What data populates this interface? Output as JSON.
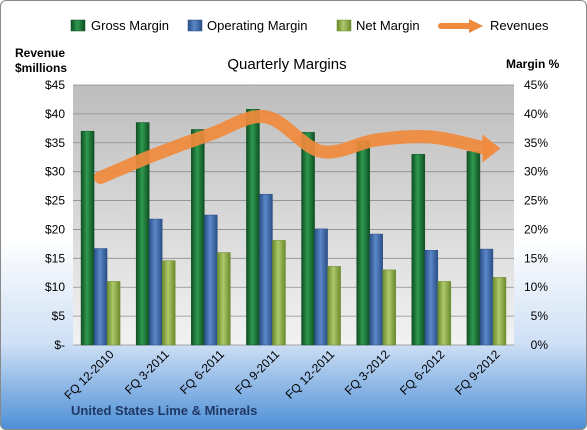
{
  "chart_data": {
    "type": "bar",
    "title": "Quarterly Margins",
    "ylabel_left_line1": "Revenue",
    "ylabel_left_line2": "$millions",
    "ylabel_right": "Margin %",
    "company": "United States Lime & Minerals",
    "categories": [
      "FQ 12-2010",
      "FQ 3-2011",
      "FQ 6-2011",
      "FQ 9-2011",
      "FQ 12-2011",
      "FQ 3-2012",
      "FQ 6-2012",
      "FQ 9-2012"
    ],
    "left_ticks": [
      "$-",
      "$5",
      "$10",
      "$15",
      "$20",
      "$25",
      "$30",
      "$35",
      "$40",
      "$45"
    ],
    "right_ticks": [
      "0%",
      "5%",
      "10%",
      "15%",
      "20%",
      "25%",
      "30%",
      "35%",
      "40%",
      "45%"
    ],
    "ylim_left": [
      0,
      45
    ],
    "ylim_right": [
      0,
      45
    ],
    "series": [
      {
        "name": "Gross Margin",
        "axis": "right",
        "color": "#1f7a3a",
        "values": [
          37.0,
          38.5,
          37.3,
          40.8,
          36.8,
          35.3,
          33.0,
          33.5
        ]
      },
      {
        "name": "Operating Margin",
        "axis": "right",
        "color": "#3f6fb5",
        "values": [
          16.7,
          21.8,
          22.5,
          26.1,
          20.1,
          19.2,
          16.4,
          16.6
        ]
      },
      {
        "name": "Net Margin",
        "axis": "right",
        "color": "#8fb04a",
        "values": [
          11.0,
          14.6,
          16.0,
          18.1,
          13.6,
          13.0,
          11.0,
          11.7
        ]
      },
      {
        "name": "Revenues",
        "axis": "left",
        "type": "line",
        "color": "#f08a3c",
        "values": [
          29,
          33,
          36.5,
          39.5,
          33.5,
          35.5,
          36,
          34
        ]
      }
    ],
    "legend_position": "top",
    "grid": true
  }
}
